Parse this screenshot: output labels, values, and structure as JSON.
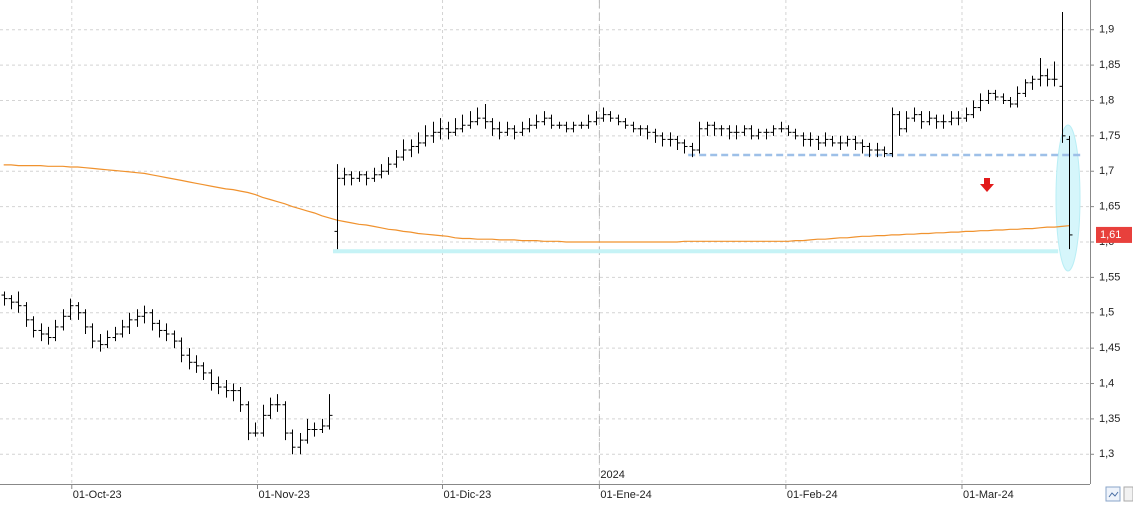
{
  "chart_data": {
    "type": "ohlc",
    "xlim": [
      -0.5,
      146.8
    ],
    "ylim": [
      1.258,
      1.942
    ],
    "yticks": [
      {
        "value": 1.3,
        "label": "1,3"
      },
      {
        "value": 1.35,
        "label": "1,35"
      },
      {
        "value": 1.4,
        "label": "1,4"
      },
      {
        "value": 1.45,
        "label": "1,45"
      },
      {
        "value": 1.5,
        "label": "1,5"
      },
      {
        "value": 1.55,
        "label": "1,55"
      },
      {
        "value": 1.6,
        "label": "1,6"
      },
      {
        "value": 1.65,
        "label": "1,65"
      },
      {
        "value": 1.7,
        "label": "1,7"
      },
      {
        "value": 1.75,
        "label": "1,75"
      },
      {
        "value": 1.8,
        "label": "1,8"
      },
      {
        "value": 1.85,
        "label": "1,85"
      },
      {
        "value": 1.9,
        "label": "1,9"
      }
    ],
    "xticks": [
      {
        "value": 9.2,
        "label": "01-Oct-23"
      },
      {
        "value": 34.3,
        "label": "01-Nov-23"
      },
      {
        "value": 59.3,
        "label": "01-Dic-23"
      },
      {
        "value": 80.5,
        "label": "01-Ene-24"
      },
      {
        "value": 105.7,
        "label": "01-Feb-24"
      },
      {
        "value": 129.5,
        "label": "01-Mar-24"
      }
    ],
    "year_marker": {
      "value": 80.5,
      "label": "2024"
    },
    "grid": true,
    "bar_color": "#000000",
    "bars": [
      [
        1.525,
        1.53,
        1.51,
        1.52
      ],
      [
        1.52,
        1.525,
        1.505,
        1.515
      ],
      [
        1.515,
        1.53,
        1.5,
        1.51
      ],
      [
        1.51,
        1.515,
        1.48,
        1.49
      ],
      [
        1.49,
        1.495,
        1.465,
        1.475
      ],
      [
        1.475,
        1.485,
        1.46,
        1.47
      ],
      [
        1.47,
        1.48,
        1.455,
        1.465
      ],
      [
        1.465,
        1.49,
        1.46,
        1.48
      ],
      [
        1.48,
        1.505,
        1.475,
        1.495
      ],
      [
        1.495,
        1.52,
        1.49,
        1.51
      ],
      [
        1.51,
        1.515,
        1.49,
        1.5
      ],
      [
        1.5,
        1.505,
        1.47,
        1.48
      ],
      [
        1.48,
        1.485,
        1.45,
        1.46
      ],
      [
        1.46,
        1.47,
        1.445,
        1.455
      ],
      [
        1.455,
        1.475,
        1.45,
        1.465
      ],
      [
        1.465,
        1.48,
        1.46,
        1.47
      ],
      [
        1.47,
        1.49,
        1.465,
        1.48
      ],
      [
        1.48,
        1.5,
        1.47,
        1.49
      ],
      [
        1.49,
        1.505,
        1.48,
        1.495
      ],
      [
        1.495,
        1.51,
        1.485,
        1.5
      ],
      [
        1.5,
        1.505,
        1.475,
        1.485
      ],
      [
        1.485,
        1.49,
        1.465,
        1.475
      ],
      [
        1.475,
        1.485,
        1.46,
        1.47
      ],
      [
        1.47,
        1.475,
        1.45,
        1.46
      ],
      [
        1.46,
        1.465,
        1.43,
        1.44
      ],
      [
        1.44,
        1.45,
        1.42,
        1.43
      ],
      [
        1.43,
        1.44,
        1.415,
        1.425
      ],
      [
        1.425,
        1.43,
        1.405,
        1.415
      ],
      [
        1.415,
        1.42,
        1.39,
        1.4
      ],
      [
        1.4,
        1.41,
        1.385,
        1.395
      ],
      [
        1.395,
        1.405,
        1.38,
        1.39
      ],
      [
        1.39,
        1.4,
        1.375,
        1.39
      ],
      [
        1.39,
        1.395,
        1.36,
        1.37
      ],
      [
        1.37,
        1.375,
        1.32,
        1.33
      ],
      [
        1.33,
        1.345,
        1.325,
        1.33
      ],
      [
        1.33,
        1.37,
        1.325,
        1.355
      ],
      [
        1.355,
        1.38,
        1.35,
        1.37
      ],
      [
        1.37,
        1.385,
        1.36,
        1.37
      ],
      [
        1.37,
        1.375,
        1.32,
        1.33
      ],
      [
        1.33,
        1.335,
        1.3,
        1.31
      ],
      [
        1.31,
        1.33,
        1.3,
        1.32
      ],
      [
        1.32,
        1.35,
        1.315,
        1.335
      ],
      [
        1.335,
        1.345,
        1.325,
        1.335
      ],
      [
        1.335,
        1.35,
        1.33,
        1.34
      ],
      [
        1.34,
        1.385,
        1.335,
        1.355
      ],
      [
        1.615,
        1.71,
        1.59,
        1.69
      ],
      [
        1.69,
        1.705,
        1.68,
        1.695
      ],
      [
        1.695,
        1.7,
        1.68,
        1.69
      ],
      [
        1.69,
        1.7,
        1.685,
        1.695
      ],
      [
        1.695,
        1.7,
        1.68,
        1.69
      ],
      [
        1.69,
        1.705,
        1.685,
        1.695
      ],
      [
        1.695,
        1.71,
        1.69,
        1.7
      ],
      [
        1.7,
        1.72,
        1.695,
        1.71
      ],
      [
        1.71,
        1.73,
        1.705,
        1.72
      ],
      [
        1.72,
        1.745,
        1.715,
        1.73
      ],
      [
        1.73,
        1.745,
        1.72,
        1.735
      ],
      [
        1.735,
        1.755,
        1.725,
        1.74
      ],
      [
        1.74,
        1.765,
        1.735,
        1.75
      ],
      [
        1.75,
        1.77,
        1.74,
        1.755
      ],
      [
        1.755,
        1.775,
        1.745,
        1.76
      ],
      [
        1.76,
        1.77,
        1.745,
        1.755
      ],
      [
        1.755,
        1.775,
        1.75,
        1.76
      ],
      [
        1.76,
        1.78,
        1.755,
        1.765
      ],
      [
        1.765,
        1.785,
        1.76,
        1.77
      ],
      [
        1.77,
        1.79,
        1.765,
        1.775
      ],
      [
        1.775,
        1.795,
        1.76,
        1.77
      ],
      [
        1.77,
        1.775,
        1.75,
        1.76
      ],
      [
        1.76,
        1.77,
        1.745,
        1.755
      ],
      [
        1.755,
        1.77,
        1.75,
        1.76
      ],
      [
        1.76,
        1.765,
        1.745,
        1.755
      ],
      [
        1.755,
        1.77,
        1.75,
        1.76
      ],
      [
        1.76,
        1.775,
        1.755,
        1.765
      ],
      [
        1.765,
        1.78,
        1.76,
        1.77
      ],
      [
        1.77,
        1.785,
        1.765,
        1.775
      ],
      [
        1.775,
        1.78,
        1.76,
        1.765
      ],
      [
        1.765,
        1.77,
        1.76,
        1.765
      ],
      [
        1.765,
        1.77,
        1.755,
        1.76
      ],
      [
        1.76,
        1.77,
        1.755,
        1.765
      ],
      [
        1.765,
        1.77,
        1.76,
        1.765
      ],
      [
        1.765,
        1.78,
        1.76,
        1.77
      ],
      [
        1.77,
        1.785,
        1.765,
        1.775
      ],
      [
        1.775,
        1.79,
        1.77,
        1.78
      ],
      [
        1.78,
        1.785,
        1.77,
        1.775
      ],
      [
        1.775,
        1.78,
        1.765,
        1.77
      ],
      [
        1.77,
        1.775,
        1.76,
        1.765
      ],
      [
        1.765,
        1.77,
        1.755,
        1.76
      ],
      [
        1.76,
        1.765,
        1.75,
        1.76
      ],
      [
        1.76,
        1.765,
        1.745,
        1.755
      ],
      [
        1.755,
        1.76,
        1.74,
        1.75
      ],
      [
        1.75,
        1.755,
        1.735,
        1.745
      ],
      [
        1.745,
        1.755,
        1.735,
        1.745
      ],
      [
        1.745,
        1.75,
        1.73,
        1.74
      ],
      [
        1.74,
        1.745,
        1.725,
        1.735
      ],
      [
        1.735,
        1.74,
        1.72,
        1.73
      ],
      [
        1.73,
        1.77,
        1.725,
        1.76
      ],
      [
        1.76,
        1.77,
        1.75,
        1.765
      ],
      [
        1.765,
        1.77,
        1.75,
        1.76
      ],
      [
        1.76,
        1.765,
        1.75,
        1.76
      ],
      [
        1.76,
        1.765,
        1.745,
        1.755
      ],
      [
        1.755,
        1.765,
        1.745,
        1.755
      ],
      [
        1.755,
        1.765,
        1.75,
        1.76
      ],
      [
        1.76,
        1.765,
        1.745,
        1.75
      ],
      [
        1.75,
        1.76,
        1.745,
        1.755
      ],
      [
        1.755,
        1.76,
        1.745,
        1.755
      ],
      [
        1.755,
        1.765,
        1.75,
        1.76
      ],
      [
        1.76,
        1.77,
        1.755,
        1.76
      ],
      [
        1.76,
        1.765,
        1.75,
        1.755
      ],
      [
        1.755,
        1.76,
        1.745,
        1.75
      ],
      [
        1.75,
        1.755,
        1.735,
        1.745
      ],
      [
        1.745,
        1.755,
        1.735,
        1.745
      ],
      [
        1.745,
        1.75,
        1.73,
        1.74
      ],
      [
        1.74,
        1.755,
        1.735,
        1.745
      ],
      [
        1.745,
        1.75,
        1.735,
        1.74
      ],
      [
        1.74,
        1.75,
        1.73,
        1.74
      ],
      [
        1.74,
        1.75,
        1.735,
        1.745
      ],
      [
        1.745,
        1.75,
        1.73,
        1.74
      ],
      [
        1.74,
        1.745,
        1.725,
        1.735
      ],
      [
        1.735,
        1.74,
        1.72,
        1.73
      ],
      [
        1.73,
        1.74,
        1.72,
        1.73
      ],
      [
        1.73,
        1.735,
        1.72,
        1.725
      ],
      [
        1.725,
        1.79,
        1.72,
        1.78
      ],
      [
        1.78,
        1.785,
        1.75,
        1.76
      ],
      [
        1.76,
        1.785,
        1.755,
        1.775
      ],
      [
        1.775,
        1.79,
        1.77,
        1.78
      ],
      [
        1.78,
        1.785,
        1.76,
        1.77
      ],
      [
        1.77,
        1.785,
        1.765,
        1.775
      ],
      [
        1.775,
        1.78,
        1.76,
        1.77
      ],
      [
        1.77,
        1.78,
        1.76,
        1.77
      ],
      [
        1.77,
        1.785,
        1.765,
        1.775
      ],
      [
        1.775,
        1.785,
        1.765,
        1.775
      ],
      [
        1.775,
        1.79,
        1.77,
        1.78
      ],
      [
        1.78,
        1.8,
        1.775,
        1.79
      ],
      [
        1.79,
        1.81,
        1.785,
        1.8
      ],
      [
        1.8,
        1.815,
        1.795,
        1.81
      ],
      [
        1.81,
        1.815,
        1.8,
        1.805
      ],
      [
        1.805,
        1.81,
        1.795,
        1.8
      ],
      [
        1.8,
        1.805,
        1.79,
        1.795
      ],
      [
        1.795,
        1.82,
        1.79,
        1.81
      ],
      [
        1.81,
        1.83,
        1.805,
        1.825
      ],
      [
        1.825,
        1.835,
        1.815,
        1.83
      ],
      [
        1.83,
        1.86,
        1.82,
        1.835
      ],
      [
        1.835,
        1.845,
        1.82,
        1.83
      ],
      [
        1.83,
        1.855,
        1.82,
        1.83
      ],
      [
        1.82,
        1.925,
        1.74,
        1.75
      ],
      [
        1.745,
        1.75,
        1.59,
        1.61
      ]
    ],
    "moving_average": {
      "color": "#f0922e",
      "values": [
        1.709,
        1.709,
        1.708,
        1.708,
        1.708,
        1.708,
        1.707,
        1.707,
        1.707,
        1.706,
        1.706,
        1.705,
        1.704,
        1.703,
        1.702,
        1.701,
        1.7,
        1.699,
        1.698,
        1.697,
        1.695,
        1.693,
        1.691,
        1.689,
        1.687,
        1.685,
        1.683,
        1.681,
        1.679,
        1.677,
        1.675,
        1.674,
        1.672,
        1.67,
        1.667,
        1.663,
        1.66,
        1.657,
        1.654,
        1.65,
        1.647,
        1.644,
        1.641,
        1.637,
        1.634,
        1.631,
        1.629,
        1.627,
        1.625,
        1.624,
        1.622,
        1.62,
        1.618,
        1.617,
        1.615,
        1.614,
        1.612,
        1.611,
        1.61,
        1.609,
        1.608,
        1.606,
        1.605,
        1.605,
        1.604,
        1.604,
        1.604,
        1.603,
        1.603,
        1.603,
        1.602,
        1.602,
        1.602,
        1.601,
        1.601,
        1.601,
        1.6,
        1.6,
        1.6,
        1.6,
        1.6,
        1.6,
        1.6,
        1.6,
        1.6,
        1.6,
        1.6,
        1.6,
        1.6,
        1.6,
        1.6,
        1.6,
        1.601,
        1.601,
        1.601,
        1.601,
        1.601,
        1.601,
        1.601,
        1.601,
        1.601,
        1.601,
        1.601,
        1.601,
        1.601,
        1.601,
        1.601,
        1.602,
        1.602,
        1.603,
        1.604,
        1.604,
        1.605,
        1.606,
        1.606,
        1.607,
        1.608,
        1.608,
        1.609,
        1.609,
        1.61,
        1.61,
        1.611,
        1.611,
        1.612,
        1.612,
        1.613,
        1.613,
        1.614,
        1.614,
        1.615,
        1.615,
        1.616,
        1.616,
        1.617,
        1.617,
        1.618,
        1.618,
        1.619,
        1.619,
        1.62,
        1.621,
        1.621,
        1.622,
        1.623
      ]
    },
    "levels": [
      {
        "value": 1.723,
        "from": 92.5,
        "to": 145.5,
        "color": "#9ec0e8",
        "dashed": true
      },
      {
        "value": 1.587,
        "from": 44.5,
        "to": 142.5,
        "color": "#c6f3f6",
        "dashed": false
      }
    ],
    "last_price": {
      "value": 1.61,
      "label": "1,61",
      "color": "#e8403c"
    }
  }
}
